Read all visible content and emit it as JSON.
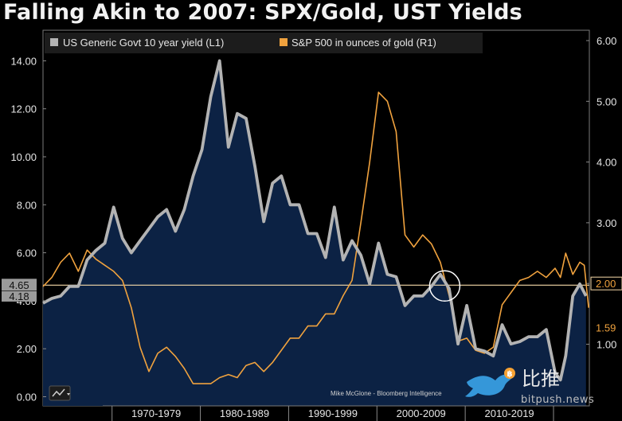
{
  "title": "Falling Akin to 2007: SPX/Gold, UST Yields",
  "chart_data": {
    "type": "line",
    "x_range": [
      1962,
      2022.3
    ],
    "x_category_labels": [
      "1970-1979",
      "1980-1989",
      "1990-1999",
      "2000-2009",
      "2010-2019"
    ],
    "left_axis": {
      "ticks": [
        "0.00",
        "2.00",
        "4.00",
        "6.00",
        "8.00",
        "10.00",
        "12.00",
        "14.00"
      ],
      "ylim": [
        0,
        14.4
      ]
    },
    "right_axis": {
      "ticks": [
        "1.00",
        "2.00",
        "3.00",
        "4.00",
        "5.00",
        "6.00"
      ],
      "ylim": [
        0.14,
        6.1
      ]
    },
    "grid": false,
    "legend_position": "top-left",
    "series": [
      {
        "name": "US Generic Govt 10 year yield (L1)",
        "axis": "left",
        "color": "#b3b3b3",
        "fill": "#0c2244",
        "points": [
          [
            1962,
            3.9
          ],
          [
            1963,
            4.1
          ],
          [
            1964,
            4.2
          ],
          [
            1965,
            4.6
          ],
          [
            1966,
            4.6
          ],
          [
            1967,
            5.7
          ],
          [
            1968,
            6.1
          ],
          [
            1969,
            6.4
          ],
          [
            1970,
            7.9
          ],
          [
            1971,
            6.6
          ],
          [
            1972,
            6.0
          ],
          [
            1973,
            6.5
          ],
          [
            1974,
            7.0
          ],
          [
            1975,
            7.5
          ],
          [
            1976,
            7.8
          ],
          [
            1977,
            6.9
          ],
          [
            1978,
            7.8
          ],
          [
            1979,
            9.2
          ],
          [
            1980,
            10.3
          ],
          [
            1981,
            12.5
          ],
          [
            1982,
            14.0
          ],
          [
            1983,
            10.4
          ],
          [
            1984,
            11.8
          ],
          [
            1985,
            11.6
          ],
          [
            1986,
            9.6
          ],
          [
            1987,
            7.3
          ],
          [
            1988,
            8.9
          ],
          [
            1989,
            9.2
          ],
          [
            1990,
            8.0
          ],
          [
            1991,
            8.0
          ],
          [
            1992,
            6.8
          ],
          [
            1993,
            6.8
          ],
          [
            1994,
            5.8
          ],
          [
            1995,
            7.9
          ],
          [
            1996,
            5.7
          ],
          [
            1997,
            6.5
          ],
          [
            1998,
            5.9
          ],
          [
            1999,
            4.7
          ],
          [
            2000,
            6.4
          ],
          [
            2001,
            5.1
          ],
          [
            2002,
            5.0
          ],
          [
            2003,
            3.8
          ],
          [
            2004,
            4.2
          ],
          [
            2005,
            4.2
          ],
          [
            2006,
            4.6
          ],
          [
            2007,
            5.1
          ],
          [
            2008,
            4.5
          ],
          [
            2009,
            2.2
          ],
          [
            2010,
            3.8
          ],
          [
            2011,
            2.0
          ],
          [
            2012,
            1.9
          ],
          [
            2013,
            1.7
          ],
          [
            2014,
            3.0
          ],
          [
            2015,
            2.2
          ],
          [
            2016,
            2.3
          ],
          [
            2017,
            2.5
          ],
          [
            2018,
            2.5
          ],
          [
            2019,
            2.8
          ],
          [
            2020,
            1.0
          ],
          [
            2020.6,
            0.7
          ],
          [
            2021.2,
            1.7
          ],
          [
            2022,
            4.2
          ],
          [
            2022.8,
            4.7
          ],
          [
            2023.5,
            4.2
          ]
        ]
      },
      {
        "name": "S&P 500 in ounces of gold (R1)",
        "axis": "right",
        "color": "#f0a23e",
        "points": [
          [
            1962,
            1.95
          ],
          [
            1963,
            2.1
          ],
          [
            1964,
            2.35
          ],
          [
            1965,
            2.5
          ],
          [
            1966,
            2.2
          ],
          [
            1967,
            2.55
          ],
          [
            1968,
            2.4
          ],
          [
            1969,
            2.3
          ],
          [
            1970,
            2.2
          ],
          [
            1971,
            2.05
          ],
          [
            1972,
            1.6
          ],
          [
            1973,
            0.95
          ],
          [
            1974,
            0.55
          ],
          [
            1975,
            0.85
          ],
          [
            1976,
            0.95
          ],
          [
            1977,
            0.8
          ],
          [
            1978,
            0.6
          ],
          [
            1979,
            0.35
          ],
          [
            1980,
            0.35
          ],
          [
            1981,
            0.35
          ],
          [
            1982,
            0.45
          ],
          [
            1983,
            0.5
          ],
          [
            1984,
            0.45
          ],
          [
            1985,
            0.65
          ],
          [
            1986,
            0.7
          ],
          [
            1987,
            0.55
          ],
          [
            1988,
            0.7
          ],
          [
            1989,
            0.9
          ],
          [
            1990,
            1.1
          ],
          [
            1991,
            1.1
          ],
          [
            1992,
            1.3
          ],
          [
            1993,
            1.3
          ],
          [
            1994,
            1.5
          ],
          [
            1995,
            1.5
          ],
          [
            1996,
            1.8
          ],
          [
            1997,
            2.05
          ],
          [
            1998,
            3.0
          ],
          [
            1999,
            4.0
          ],
          [
            2000,
            5.15
          ],
          [
            2001,
            5.0
          ],
          [
            2002,
            4.5
          ],
          [
            2003,
            2.8
          ],
          [
            2004,
            2.6
          ],
          [
            2005,
            2.8
          ],
          [
            2006,
            2.65
          ],
          [
            2007,
            2.35
          ],
          [
            2008,
            1.8
          ],
          [
            2009,
            1.05
          ],
          [
            2010,
            1.1
          ],
          [
            2011,
            0.9
          ],
          [
            2012,
            0.85
          ],
          [
            2013,
            0.95
          ],
          [
            2014,
            1.65
          ],
          [
            2015,
            1.85
          ],
          [
            2016,
            2.05
          ],
          [
            2017,
            2.1
          ],
          [
            2018,
            2.2
          ],
          [
            2019,
            2.1
          ],
          [
            2020,
            2.25
          ],
          [
            2020.6,
            2.1
          ],
          [
            2021.2,
            2.5
          ],
          [
            2022,
            2.15
          ],
          [
            2022.8,
            2.35
          ],
          [
            2023.3,
            2.3
          ],
          [
            2023.8,
            1.6
          ]
        ]
      }
    ],
    "reference_line": {
      "axis": "left",
      "value": 4.65,
      "color": "#f5d9a8"
    },
    "value_labels": [
      {
        "axis": "left",
        "text": "4.65"
      },
      {
        "axis": "left",
        "text": "4.18"
      },
      {
        "axis": "right",
        "text": "2.00"
      },
      {
        "axis": "right",
        "text": "1.59"
      }
    ],
    "annotation_circle_year": 2007.5,
    "credit": "Mike McGlone - Bloomberg Intelligence"
  },
  "watermark": {
    "chinese": "比推",
    "domain": "bitpush.news"
  }
}
